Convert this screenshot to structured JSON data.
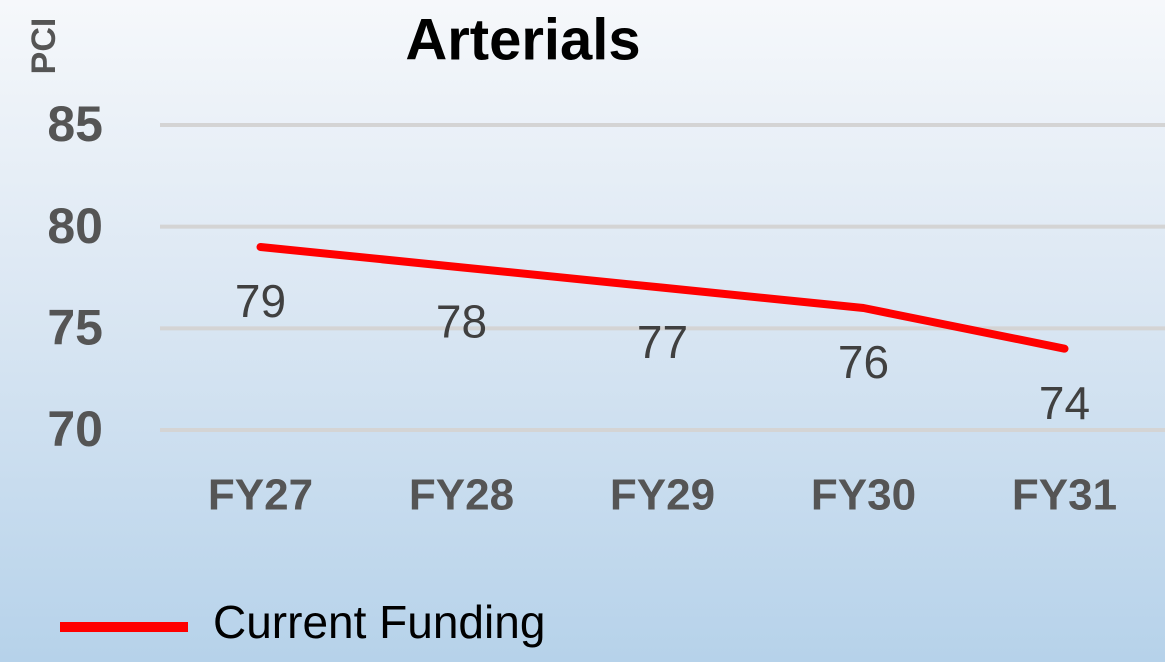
{
  "chart_data": {
    "type": "line",
    "title": "Arterials",
    "y_label": "PCI",
    "categories": [
      "FY27",
      "FY28",
      "FY29",
      "FY30",
      "FY31"
    ],
    "series": [
      {
        "name": "Current Funding",
        "color": "#ff0000",
        "values": [
          79,
          78,
          77,
          76,
          74
        ]
      }
    ],
    "ylim": [
      70,
      85
    ],
    "yticks": [
      70,
      75,
      80,
      85
    ],
    "grid": true
  }
}
